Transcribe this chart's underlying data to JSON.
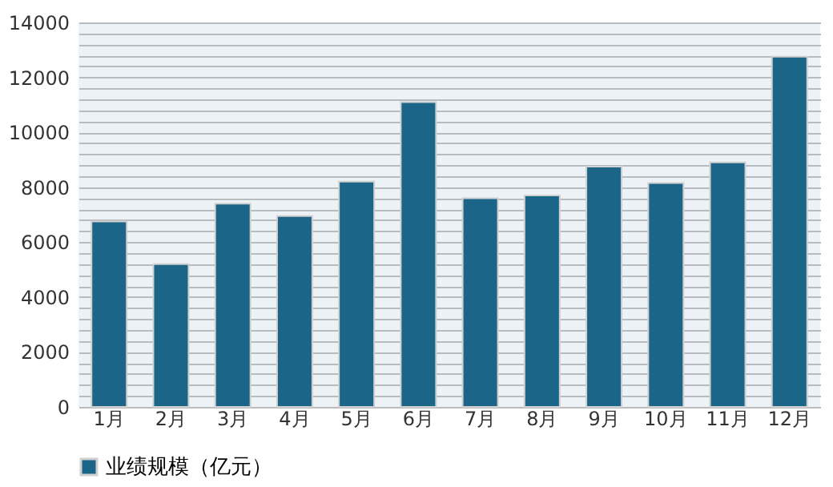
{
  "chart_data": {
    "type": "bar",
    "categories": [
      "1月",
      "2月",
      "3月",
      "4月",
      "5月",
      "6月",
      "7月",
      "8月",
      "9月",
      "10月",
      "11月",
      "12月"
    ],
    "series": [
      {
        "name": "业绩规模（亿元）",
        "color": "#1b6688",
        "values": [
          6750,
          5200,
          7400,
          6950,
          8200,
          11100,
          7600,
          7700,
          8750,
          8150,
          8900,
          12750
        ]
      }
    ],
    "ylim": [
      0,
      14000
    ],
    "yticks": [
      0,
      {
        "value": 400,
        "label": null
      },
      {
        "value": 800,
        "label": null
      },
      {
        "value": 1200,
        "label": null
      },
      {
        "value": 1600,
        "label": null
      },
      2000,
      {
        "value": 2400,
        "label": null
      },
      {
        "value": 2800,
        "label": null
      },
      {
        "value": 3200,
        "label": null
      },
      {
        "value": 3600,
        "label": null
      },
      4000,
      {
        "value": 4400,
        "label": null
      },
      {
        "value": 4800,
        "label": null
      },
      {
        "value": 5200,
        "label": null
      },
      {
        "value": 5600,
        "label": null
      },
      6000,
      {
        "value": 6400,
        "label": null
      },
      {
        "value": 6800,
        "label": null
      },
      {
        "value": 7200,
        "label": null
      },
      {
        "value": 7600,
        "label": null
      },
      8000,
      {
        "value": 8400,
        "label": null
      },
      {
        "value": 8800,
        "label": null
      },
      {
        "value": 9200,
        "label": null
      },
      {
        "value": 9600,
        "label": null
      },
      10000,
      {
        "value": 10400,
        "label": null
      },
      {
        "value": 10800,
        "label": null
      },
      {
        "value": 11200,
        "label": null
      },
      {
        "value": 11600,
        "label": null
      },
      12000,
      {
        "value": 12400,
        "label": null
      },
      {
        "value": 12800,
        "label": null
      },
      {
        "value": 13200,
        "label": null
      },
      {
        "value": 13600,
        "label": null
      },
      14000
    ],
    "grid": "y",
    "legend": "bottom"
  }
}
